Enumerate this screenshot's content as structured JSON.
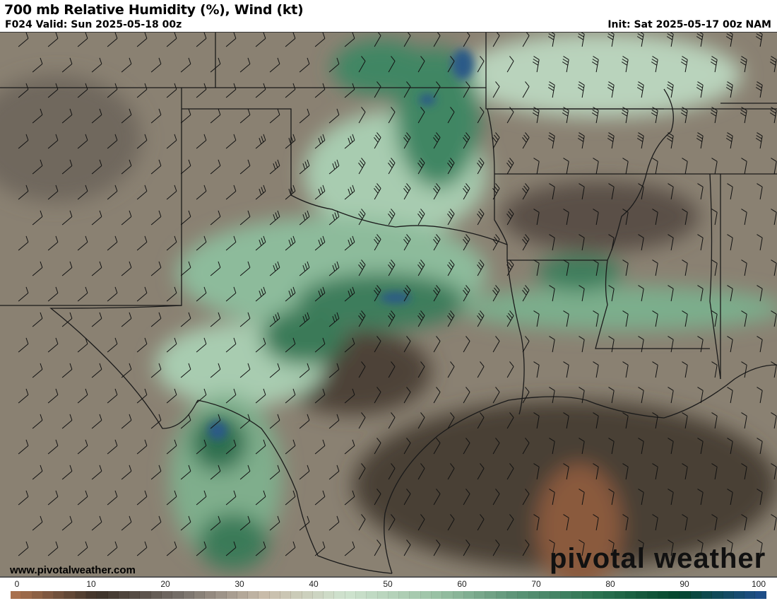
{
  "header": {
    "title": "700 mb Relative Humidity (%), Wind (kt)",
    "valid": "F024 Valid: Sun 2025-05-18 00z",
    "init": "Init: Sat 2025-05-17 00z NAM"
  },
  "footer": {
    "url": "www.pivotalweather.com",
    "logo": "pivotal weather"
  },
  "colorbar": {
    "ticks": [
      "0",
      "10",
      "20",
      "30",
      "40",
      "50",
      "60",
      "70",
      "80",
      "90",
      "100"
    ],
    "stops": [
      "#a9714e",
      "#3d3229",
      "#77706a",
      "#c9bcaa",
      "#cfe3cf",
      "#9fc5a8",
      "#5f9679",
      "#2d7552",
      "#04462d",
      "#1e4e88"
    ]
  },
  "colors": {
    "dry": "#8a8172",
    "very_dry": "#4a3f35",
    "moist": "#a8ccb0",
    "wet": "#2c7250",
    "saturated": "#2b5a87"
  }
}
